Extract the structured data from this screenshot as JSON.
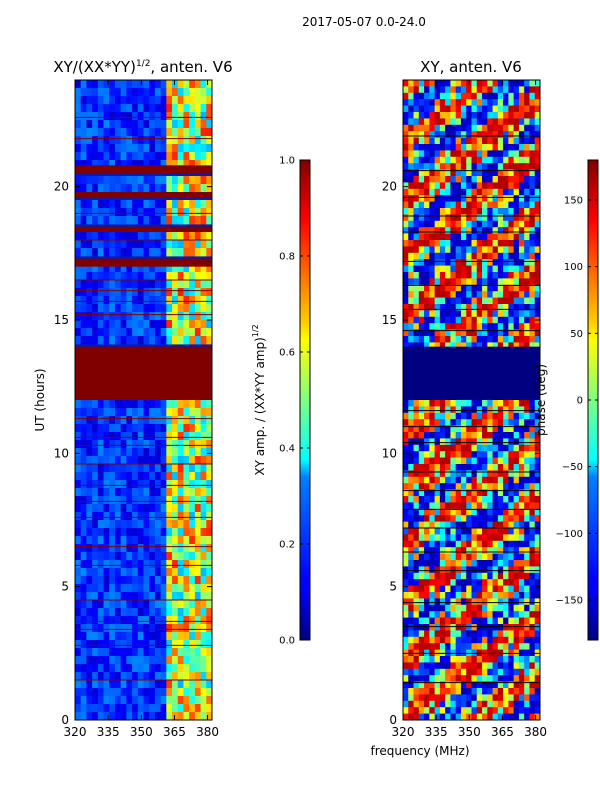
{
  "figure": {
    "suptitle": "2017-05-07 0.0-24.0"
  },
  "chart_data": [
    {
      "type": "heatmap",
      "title": "XY/(XX*YY)",
      "title_sup": "1/2",
      "title_suffix": ", anten. V6",
      "ylabel": "UT (hours)",
      "xlim": [
        320,
        382
      ],
      "ylim": [
        0,
        24
      ],
      "xticks": [
        "320",
        "335",
        "350",
        "365",
        "380"
      ],
      "xtick_values": [
        320,
        335,
        350,
        365,
        380
      ],
      "yticks": [
        "0",
        "5",
        "10",
        "15",
        "20"
      ],
      "ytick_values": [
        0,
        5,
        10,
        15,
        20
      ],
      "colormap": "jet",
      "color_range": [
        0.0,
        1.0
      ],
      "flagged_bands_hours": [
        [
          12.0,
          14.0
        ],
        [
          17.0,
          17.3
        ],
        [
          18.3,
          18.5
        ],
        [
          19.6,
          19.8
        ],
        [
          20.5,
          20.8
        ]
      ],
      "flag_color": "#800000",
      "colorbar": {
        "label": "XY amp. / (XX*YY amp)",
        "label_sup": "1/2",
        "ticks": [
          "0.0",
          "0.2",
          "0.4",
          "0.6",
          "0.8",
          "1.0"
        ],
        "tick_values": [
          0.0,
          0.2,
          0.4,
          0.6,
          0.8,
          1.0
        ]
      }
    },
    {
      "type": "heatmap",
      "title": "XY, anten. V6",
      "xlabel": "frequency (MHz)",
      "xlim": [
        320,
        382
      ],
      "ylim": [
        0,
        24
      ],
      "xticks": [
        "320",
        "335",
        "350",
        "365",
        "380"
      ],
      "xtick_values": [
        320,
        335,
        350,
        365,
        380
      ],
      "yticks": [
        "0",
        "5",
        "10",
        "15",
        "20"
      ],
      "ytick_values": [
        0,
        5,
        10,
        15,
        20
      ],
      "colormap": "jet",
      "color_range": [
        -180,
        180
      ],
      "flagged_bands_hours": [
        [
          12.0,
          14.0
        ]
      ],
      "colorbar": {
        "label": "phase (deg)",
        "ticks": [
          "−150",
          "−100",
          "−50",
          "0",
          "50",
          "100",
          "150"
        ],
        "tick_values": [
          -150,
          -100,
          -50,
          0,
          50,
          100,
          150
        ]
      }
    }
  ]
}
